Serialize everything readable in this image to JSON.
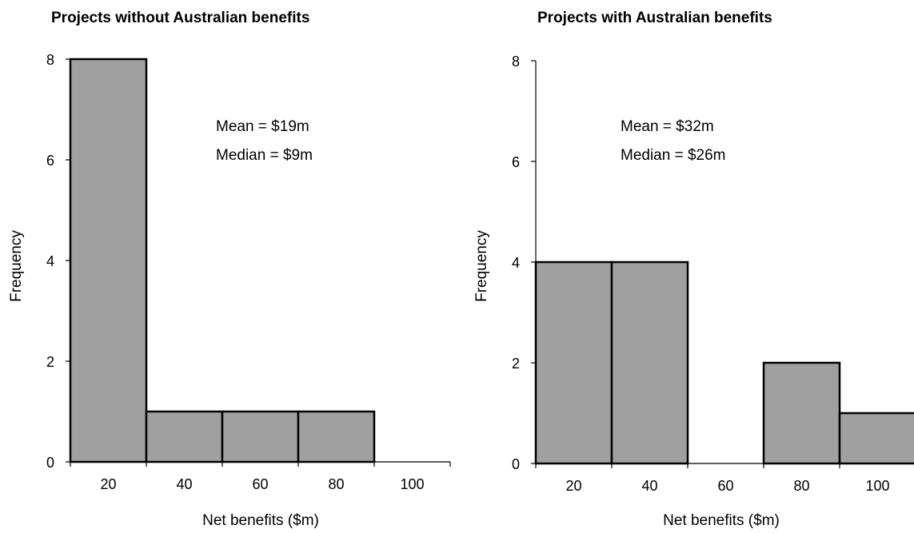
{
  "chart_data": [
    {
      "type": "bar",
      "title": "Projects without Australian benefits",
      "xlabel": "Net benefits ($m)",
      "ylabel": "Frequency",
      "categories": [
        "20",
        "40",
        "60",
        "80",
        "100"
      ],
      "values": [
        8,
        1,
        1,
        1,
        0
      ],
      "yticks": [
        "0",
        "2",
        "4",
        "6",
        "8"
      ],
      "ylim": [
        0,
        8
      ],
      "grid": false,
      "annotations": [
        "Mean = $19m",
        "Median = $9m"
      ],
      "bar_color": "#a0a0a0"
    },
    {
      "type": "bar",
      "title": "Projects with Australian benefits",
      "xlabel": "Net benefits ($m)",
      "ylabel": "Frequency",
      "categories": [
        "20",
        "40",
        "60",
        "80",
        "100"
      ],
      "values": [
        4,
        4,
        0,
        2,
        1
      ],
      "yticks": [
        "0",
        "2",
        "4",
        "6",
        "8"
      ],
      "ylim": [
        0,
        8
      ],
      "grid": false,
      "annotations": [
        "Mean = $32m",
        "Median = $26m"
      ],
      "bar_color": "#a0a0a0"
    }
  ]
}
